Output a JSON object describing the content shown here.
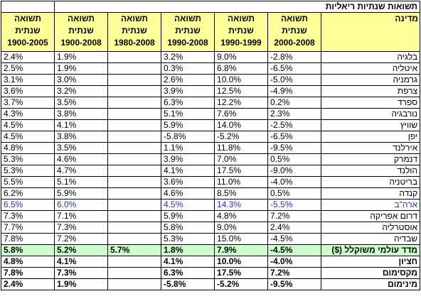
{
  "title": "תשואות שנתיות ריאליות",
  "headers": {
    "country": "מדינה",
    "col1": [
      "תשואה",
      "שנתית",
      "2000-2008"
    ],
    "col2": [
      "תשואה",
      "שנתית",
      "1990-1999"
    ],
    "col3": [
      "תשואה",
      "שנתית",
      "1990-2008"
    ],
    "col4": [
      "תשואה",
      "שנתית",
      "1980-2008"
    ],
    "col5": [
      "תשואה",
      "שנתית",
      "1900-2008"
    ],
    "col6": [
      "תשואה",
      "שנתית",
      "1900-2005"
    ]
  },
  "rows": [
    {
      "country": "בלגיה",
      "v": [
        "-2.8%",
        "9.0%",
        "3.2%",
        "",
        "1.9%",
        "2.4%"
      ]
    },
    {
      "country": "איטליה",
      "v": [
        "-6.5%",
        "6.8%",
        "0.3%",
        "",
        "1.9%",
        "2.5%"
      ]
    },
    {
      "country": "גרמניה",
      "v": [
        "-5.0%",
        "10.0%",
        "2.6%",
        "",
        "3.0%",
        "3.1%"
      ]
    },
    {
      "country": "צרפת",
      "v": [
        "-4.9%",
        "12.5%",
        "3.9%",
        "",
        "3.2%",
        "3.6%"
      ]
    },
    {
      "country": "ספרד",
      "v": [
        "0.2%",
        "12.2%",
        "6.3%",
        "",
        "3.5%",
        "3.7%"
      ]
    },
    {
      "country": "נורבגיה",
      "v": [
        "2.3%",
        "7.6%",
        "5.1%",
        "",
        "3.8%",
        "4.3%"
      ]
    },
    {
      "country": "שוויץ",
      "v": [
        "-2.5%",
        "14.0%",
        "5.9%",
        "",
        "4.1%",
        "4.5%"
      ]
    },
    {
      "country": "יפן",
      "v": [
        "-6.5%",
        "-5.2%",
        "-5.8%",
        "",
        "3.8%",
        "4.5%"
      ]
    },
    {
      "country": "אירלנד",
      "v": [
        "-9.5%",
        "11.8%",
        "1.1%",
        "",
        "3.5%",
        "4.8%"
      ]
    },
    {
      "country": "דנמרק",
      "v": [
        "0.5%",
        "7.0%",
        "3.9%",
        "",
        "4.6%",
        "5.3%"
      ]
    },
    {
      "country": "הולנד",
      "v": [
        "-9.0%",
        "17.5%",
        "4.1%",
        "",
        "4.7%",
        "5.3%"
      ]
    },
    {
      "country": "בריטניה",
      "v": [
        "-4.0%",
        "11.0%",
        "3.6%",
        "",
        "5.1%",
        "5.5%"
      ]
    },
    {
      "country": "קנדה",
      "v": [
        "0.5%",
        "8.5%",
        "4.6%",
        "",
        "5.9%",
        "6.2%"
      ]
    },
    {
      "country": "ארה\"ב",
      "v": [
        "-5.5%",
        "14.3%",
        "4.5%",
        "",
        "6.0%",
        "6.5%"
      ]
    },
    {
      "country": "דרום אפריקה",
      "v": [
        "7.2%",
        "4.8%",
        "5.9%",
        "",
        "7.1%",
        "7.3%"
      ]
    },
    {
      "country": "אוסטרליה",
      "v": [
        "2.4%",
        "9.0%",
        "5.8%",
        "",
        "7.3%",
        "7.7%"
      ]
    },
    {
      "country": "שבדיה",
      "v": [
        "-4.5%",
        "15.0%",
        "5.3%",
        "",
        "7.2%",
        "7.8%"
      ]
    }
  ],
  "world": {
    "country": "מדד עולמי משוקלל ($)",
    "v": [
      "-4.5%",
      "7.9%",
      "1.8%",
      "5.7%",
      "5.2%",
      "5.8%"
    ]
  },
  "stats": [
    {
      "country": "חציון",
      "v": [
        "-4.0%",
        "10.0%",
        "4.1%",
        "",
        "4.1%",
        "4.8%"
      ]
    },
    {
      "country": "מקסימום",
      "v": [
        "7.2%",
        "17.5%",
        "6.3%",
        "",
        "7.3%",
        "7.8%"
      ]
    },
    {
      "country": "מינימום",
      "v": [
        "-9.5%",
        "-5.2%",
        "-5.8%",
        "",
        "1.9%",
        "2.4%"
      ]
    }
  ],
  "colors": {
    "header_bg": "#ffff99",
    "world_bg": "#ccffcc",
    "usa_text": "#1f2fd6"
  }
}
